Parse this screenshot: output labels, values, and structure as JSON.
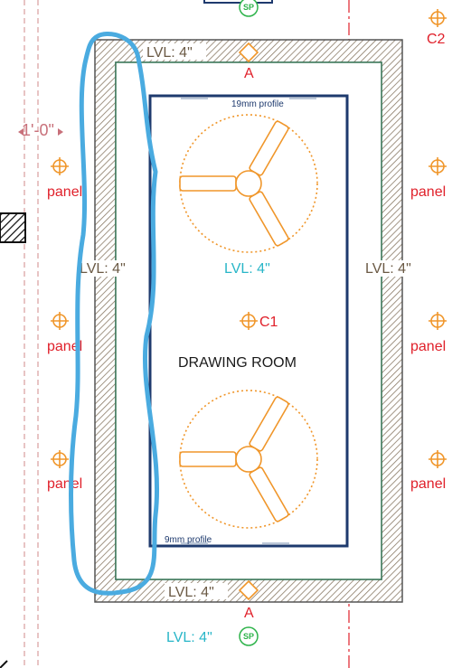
{
  "room": {
    "name": "DRAWING ROOM"
  },
  "levels": {
    "top": "LVL: 4\"",
    "left": "LVL: 4\"",
    "right": "LVL: 4\"",
    "center": "LVL: 4\"",
    "bottom": "LVL: 4\"",
    "below": "LVL: 4\""
  },
  "profiles": {
    "top": "19mm profile",
    "bottom": "9mm profile"
  },
  "markers": {
    "top": "A",
    "bottom": "A",
    "sp_top": "SP",
    "sp_bottom": "SP"
  },
  "lights": {
    "center": "C1",
    "corner": "C2"
  },
  "panels": [
    "panel",
    "panel",
    "panel",
    "panel",
    "panel",
    "panel"
  ],
  "dimension": "1'-0\"",
  "colors": {
    "wall_hatch": "#8a7a66",
    "fan": "#f0962a",
    "false_ceiling_inner": "#1e3a6e",
    "cove_line": "#3a7a5a",
    "grid_red": "#e0202a",
    "level_teal": "#29b6c8",
    "markup_blue": "#4aabe0",
    "sp_green": "#2db34a"
  }
}
